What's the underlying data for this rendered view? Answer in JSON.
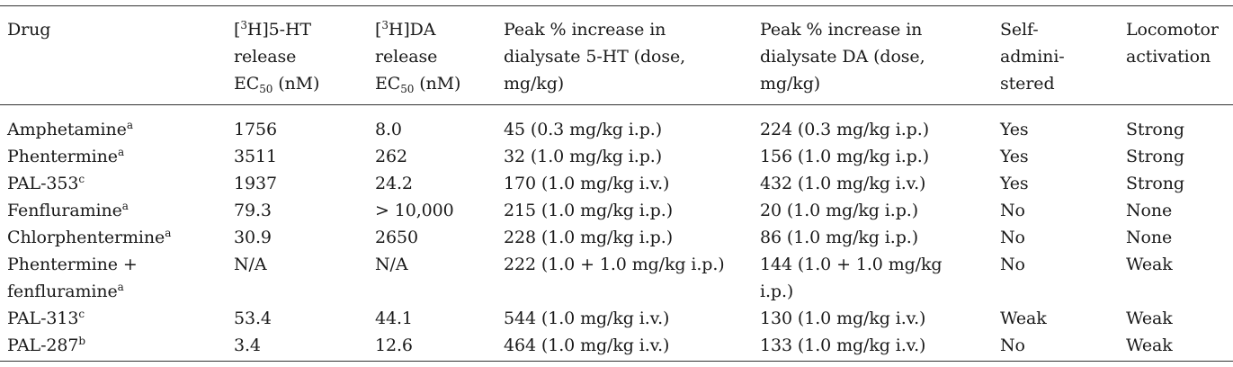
{
  "table": {
    "headers": {
      "drug": "Drug",
      "ht_release": {
        "pre": "[",
        "sup": "3",
        "post": "H]5-HT",
        "line2": "release",
        "ec": "EC",
        "ec_sub": "50",
        "unit": " (nM)"
      },
      "da_release": {
        "pre": "[",
        "sup": "3",
        "post": "H]DA",
        "line2": "release",
        "ec": "EC",
        "ec_sub": "50",
        "unit": " (nM)"
      },
      "peak_5ht": [
        "Peak % increase in",
        "dialysate 5-HT (dose,",
        "mg/kg)"
      ],
      "peak_da": [
        "Peak % increase in",
        "dialysate DA (dose,",
        "mg/kg)"
      ],
      "self_admin": [
        "Self-",
        "admini-",
        "stered"
      ],
      "locomotor": [
        "Locomotor",
        "activation"
      ]
    },
    "rows": [
      {
        "drug": "Amphetamine",
        "sup": "a",
        "ht": "1756",
        "da": "8.0",
        "peak5ht": "45 (0.3 mg/kg i.p.)",
        "peakda": "224 (0.3 mg/kg i.p.)",
        "self": "Yes",
        "loco": "Strong"
      },
      {
        "drug": "Phentermine",
        "sup": "a",
        "ht": "3511",
        "da": "262",
        "peak5ht": "32 (1.0 mg/kg i.p.)",
        "peakda": "156 (1.0 mg/kg i.p.)",
        "self": "Yes",
        "loco": "Strong"
      },
      {
        "drug": "PAL-353",
        "sup": "c",
        "ht": "1937",
        "da": "24.2",
        "peak5ht": "170 (1.0 mg/kg i.v.)",
        "peakda": "432 (1.0 mg/kg i.v.)",
        "self": "Yes",
        "loco": "Strong"
      },
      {
        "drug": "Fenfluramine",
        "sup": "a",
        "ht": "79.3",
        "da": "> 10,000",
        "peak5ht": "215 (1.0 mg/kg i.p.)",
        "peakda": "20 (1.0 mg/kg i.p.)",
        "self": "No",
        "loco": "None"
      },
      {
        "drug": "Chlorphentermine",
        "sup": "a",
        "ht": "30.9",
        "da": "2650",
        "peak5ht": "228 (1.0 mg/kg i.p.)",
        "peakda": "86 (1.0 mg/kg i.p.)",
        "self": "No",
        "loco": "None"
      },
      {
        "drug": "Phentermine +",
        "drug_line2": "fenfluramine",
        "sup": "a",
        "ht": "N/A",
        "da": "N/A",
        "peak5ht": "222 (1.0 + 1.0 mg/kg i.p.)",
        "peakda": "144 (1.0 + 1.0 mg/kg",
        "peakda_line2": "i.p.)",
        "self": "No",
        "loco": "Weak"
      },
      {
        "drug": "PAL-313",
        "sup": "c",
        "ht": "53.4",
        "da": "44.1",
        "peak5ht": "544 (1.0 mg/kg i.v.)",
        "peakda": "130 (1.0 mg/kg i.v.)",
        "self": "Weak",
        "loco": "Weak"
      },
      {
        "drug": "PAL-287",
        "sup": "b",
        "ht": "3.4",
        "da": "12.6",
        "peak5ht": "464 (1.0 mg/kg i.v.)",
        "peakda": "133 (1.0 mg/kg i.v.)",
        "self": "No",
        "loco": "Weak"
      }
    ]
  }
}
